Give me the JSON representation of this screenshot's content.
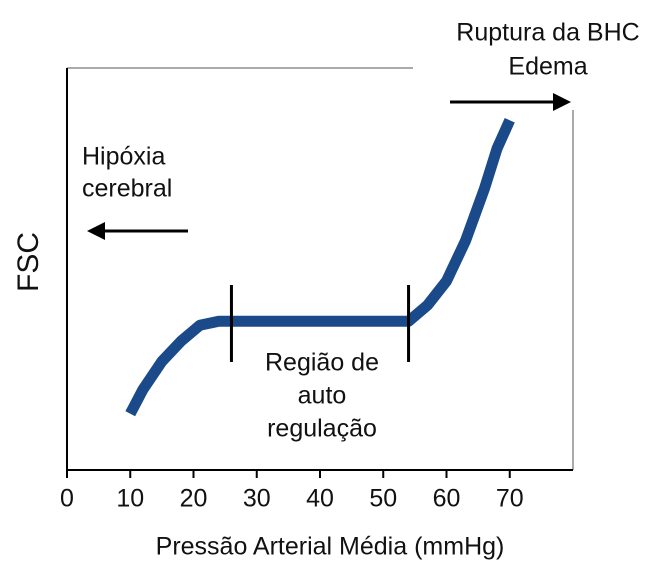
{
  "chart_data": {
    "type": "line",
    "xlabel": "Pressão Arterial Média (mmHg)",
    "ylabel": "FSC",
    "x": [
      10,
      12,
      15,
      18,
      21,
      24,
      26,
      54,
      57,
      60,
      63,
      66,
      68,
      70
    ],
    "series": [
      {
        "name": "FSC",
        "color": "#1a4a8a",
        "values": [
          14,
          20,
          27,
          32,
          36,
          37,
          37,
          37,
          41,
          47,
          57,
          70,
          80,
          87
        ]
      }
    ],
    "xlim": [
      0,
      80
    ],
    "xticks": [
      0,
      10,
      20,
      30,
      40,
      50,
      60,
      70
    ],
    "ylim": [
      0,
      100
    ],
    "markers": [
      26,
      54
    ],
    "annotations": [
      {
        "lines": [
          "Hipóxia",
          "cerebral"
        ]
      },
      {
        "lines": [
          "Ruptura da BHC",
          "Edema"
        ]
      },
      {
        "lines": [
          "Região de",
          "auto",
          "regulação"
        ]
      }
    ]
  }
}
